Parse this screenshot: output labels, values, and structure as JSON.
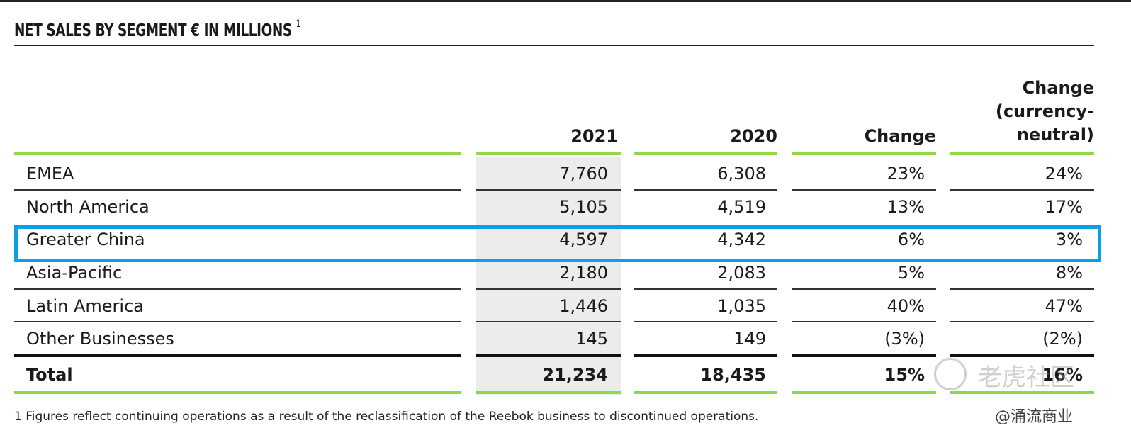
{
  "title": "NET SALES BY SEGMENT € IN MILLIONS",
  "title_footnote_mark": "1",
  "columns": [
    "2021",
    "2020",
    "Change"
  ],
  "column4_lines": [
    "Change",
    "(currency-",
    "neutral)"
  ],
  "rows": [
    {
      "label": "EMEA",
      "y2021": "7,760",
      "y2020": "6,308",
      "change": "23%",
      "cn": "24%"
    },
    {
      "label": "North America",
      "y2021": "5,105",
      "y2020": "4,519",
      "change": "13%",
      "cn": "17%"
    },
    {
      "label": "Greater China",
      "y2021": "4,597",
      "y2020": "4,342",
      "change": "6%",
      "cn": "3%"
    },
    {
      "label": "Asia-Pacific",
      "y2021": "2,180",
      "y2020": "2,083",
      "change": "5%",
      "cn": "8%"
    },
    {
      "label": "Latin America",
      "y2021": "1,446",
      "y2020": "1,035",
      "change": "40%",
      "cn": "47%"
    },
    {
      "label": "Other Businesses",
      "y2021": "145",
      "y2020": "149",
      "change": "(3%)",
      "cn": "(2%)"
    }
  ],
  "total": {
    "label": "Total",
    "y2021": "21,234",
    "y2020": "18,435",
    "change": "15%",
    "cn": "16%"
  },
  "footnote": "1 Figures reflect continuing operations as a result of the reclassification of the Reebok business to discontinued operations.",
  "watermarks": {
    "primary": "老虎社区",
    "secondary": "@涌流商业"
  },
  "colors": {
    "accent_green": "#8fd84a",
    "highlight_blue": "#0aa0e6"
  }
}
